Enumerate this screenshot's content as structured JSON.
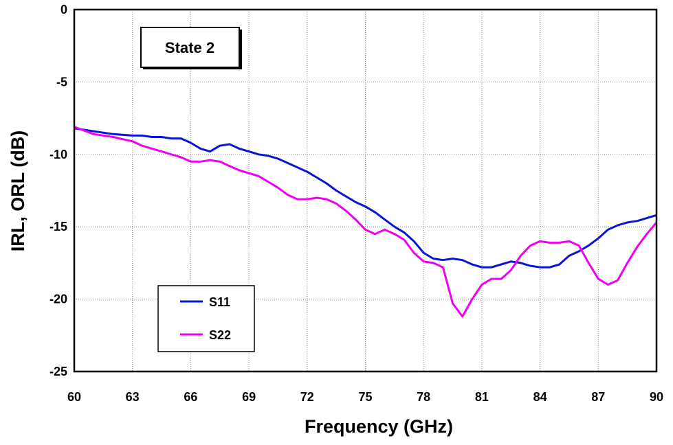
{
  "chart_data": {
    "type": "line",
    "xlabel": "Frequency (GHz)",
    "ylabel": "IRL, ORL (dB)",
    "xlim": [
      60,
      90
    ],
    "ylim": [
      -25,
      0
    ],
    "xticks": [
      60,
      63,
      66,
      69,
      72,
      75,
      78,
      81,
      84,
      87,
      90
    ],
    "yticks": [
      0,
      -5,
      -10,
      -15,
      -20,
      -25
    ],
    "grid": "dotted",
    "legend_position": "bottom-left",
    "annotation": "State 2",
    "series": [
      {
        "name": "S11",
        "color": "#0a14d8",
        "x": [
          60,
          61,
          62,
          63,
          63.5,
          64,
          64.5,
          65,
          65.5,
          66,
          66.5,
          67,
          67.5,
          68,
          68.5,
          69,
          69.5,
          70,
          70.5,
          71,
          71.5,
          72,
          72.5,
          73,
          73.5,
          74,
          74.5,
          75,
          75.5,
          76,
          76.5,
          77,
          77.5,
          78,
          78.5,
          79,
          79.5,
          80,
          80.5,
          81,
          81.5,
          82,
          82.5,
          83,
          83.5,
          84,
          84.5,
          85,
          85.5,
          86,
          86.5,
          87,
          87.5,
          88,
          88.5,
          89,
          89.5,
          90
        ],
        "y": [
          -8.2,
          -8.4,
          -8.6,
          -8.7,
          -8.7,
          -8.8,
          -8.8,
          -8.9,
          -8.9,
          -9.2,
          -9.6,
          -9.8,
          -9.4,
          -9.3,
          -9.6,
          -9.8,
          -10.0,
          -10.1,
          -10.3,
          -10.6,
          -10.9,
          -11.2,
          -11.6,
          -12.0,
          -12.5,
          -12.9,
          -13.3,
          -13.6,
          -14.0,
          -14.5,
          -15.0,
          -15.4,
          -16.0,
          -16.8,
          -17.2,
          -17.3,
          -17.2,
          -17.3,
          -17.6,
          -17.8,
          -17.8,
          -17.6,
          -17.4,
          -17.5,
          -17.7,
          -17.8,
          -17.8,
          -17.6,
          -17.0,
          -16.7,
          -16.3,
          -15.8,
          -15.2,
          -14.9,
          -14.7,
          -14.6,
          -14.4,
          -14.2
        ]
      },
      {
        "name": "S22",
        "color": "#f000f0",
        "x": [
          60,
          61,
          62,
          63,
          63.5,
          64,
          64.5,
          65,
          65.5,
          66,
          66.5,
          67,
          67.5,
          68,
          68.5,
          69,
          69.5,
          70,
          70.5,
          71,
          71.5,
          72,
          72.5,
          73,
          73.5,
          74,
          74.5,
          75,
          75.5,
          76,
          76.5,
          77,
          77.5,
          78,
          78.5,
          79,
          79.5,
          80,
          80.5,
          81,
          81.5,
          82,
          82.5,
          83,
          83.5,
          84,
          84.5,
          85,
          85.5,
          86,
          86.5,
          87,
          87.5,
          88,
          88.5,
          89,
          89.5,
          90
        ],
        "y": [
          -8.1,
          -8.6,
          -8.8,
          -9.1,
          -9.4,
          -9.6,
          -9.8,
          -10.0,
          -10.2,
          -10.5,
          -10.5,
          -10.4,
          -10.5,
          -10.8,
          -11.1,
          -11.3,
          -11.5,
          -11.9,
          -12.3,
          -12.8,
          -13.1,
          -13.1,
          -13.0,
          -13.1,
          -13.4,
          -13.9,
          -14.5,
          -15.2,
          -15.5,
          -15.2,
          -15.5,
          -15.9,
          -16.8,
          -17.4,
          -17.5,
          -17.8,
          -20.3,
          -21.2,
          -20.0,
          -19.0,
          -18.6,
          -18.6,
          -18.0,
          -17.0,
          -16.3,
          -16.0,
          -16.1,
          -16.1,
          -16.0,
          -16.3,
          -17.5,
          -18.6,
          -19.0,
          -18.7,
          -17.5,
          -16.4,
          -15.5,
          -14.7
        ]
      }
    ]
  }
}
